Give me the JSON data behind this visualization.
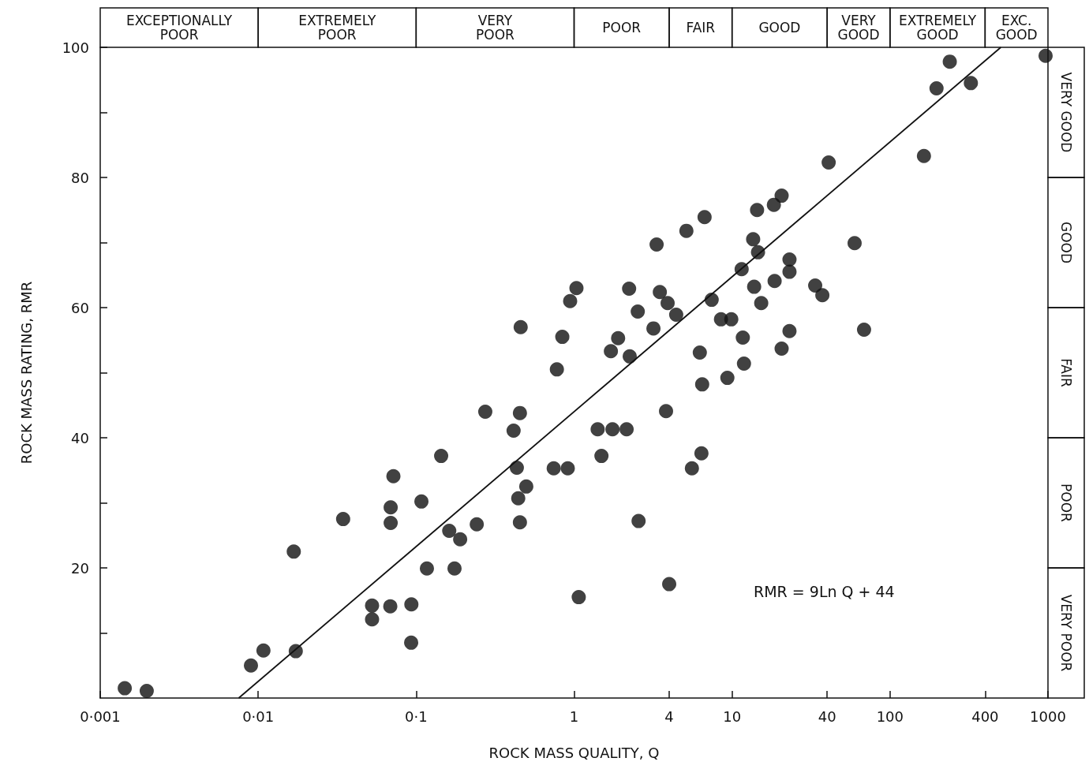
{
  "chart_data": {
    "type": "scatter",
    "xlabel": "ROCK MASS QUALITY, Q",
    "ylabel": "ROCK MASS RATING, RMR",
    "log": "x",
    "marker": "circle",
    "grid": false,
    "xlim": [
      0.001,
      1000
    ],
    "ylim": [
      0,
      100
    ],
    "xticks": [
      {
        "value": 0.001,
        "label": "0·001"
      },
      {
        "value": 0.01,
        "label": "0·01"
      },
      {
        "value": 0.1,
        "label": "0·1"
      },
      1,
      4,
      10,
      40,
      100,
      400,
      1000
    ],
    "yticks": [
      {
        "value": 10,
        "label": null
      },
      20,
      {
        "value": 30,
        "label": null
      },
      40,
      {
        "value": 50,
        "label": null
      },
      60,
      {
        "value": 70,
        "label": null
      },
      80,
      {
        "value": 90,
        "label": null
      },
      100
    ],
    "series": [
      {
        "color": "#111111",
        "x": [
          0.00143,
          0.00197,
          0.009,
          0.0108,
          0.0168,
          0.0173,
          0.0345,
          0.0526,
          0.0526,
          0.0686,
          0.069,
          0.069,
          0.0718,
          0.0933,
          0.093,
          0.108,
          0.117,
          0.144,
          0.162,
          0.175,
          0.19,
          0.242,
          0.274,
          0.414,
          0.434,
          0.443,
          0.454,
          0.459,
          0.454,
          0.498,
          0.743,
          0.778,
          0.842,
          0.912,
          0.944,
          1.035,
          1.07,
          1.41,
          1.49,
          1.71,
          1.75,
          1.9,
          2.15,
          2.23,
          2.25,
          2.53,
          2.56,
          3.18,
          3.33,
          3.49,
          3.82,
          3.91,
          4.0,
          4.43,
          5.14,
          5.57,
          6.25,
          6.4,
          6.47,
          6.7,
          7.43,
          8.51,
          9.34,
          9.89,
          11.5,
          11.7,
          11.9,
          13.6,
          13.8,
          14.4,
          14.6,
          15.3,
          18.4,
          18.6,
          20.6,
          20.6,
          23.1,
          23.1,
          23.1,
          33.6,
          37.3,
          40.9,
          59.7,
          68.5,
          164,
          197,
          239,
          325,
          966
        ],
        "values": [
          1.5,
          1.1,
          5.0,
          7.3,
          22.5,
          7.2,
          27.5,
          14.2,
          12.1,
          14.1,
          29.3,
          26.9,
          34.1,
          14.4,
          8.5,
          30.2,
          19.9,
          37.2,
          25.7,
          19.9,
          24.4,
          26.7,
          44.0,
          41.1,
          35.4,
          30.7,
          43.8,
          57.0,
          27.0,
          32.5,
          35.3,
          50.5,
          55.5,
          35.3,
          61.0,
          63.0,
          15.5,
          41.3,
          37.2,
          53.3,
          41.3,
          55.3,
          41.3,
          62.9,
          52.5,
          59.4,
          27.2,
          56.8,
          69.7,
          62.4,
          44.1,
          60.7,
          17.5,
          58.9,
          71.8,
          35.3,
          53.1,
          37.6,
          48.2,
          73.9,
          61.2,
          58.2,
          49.2,
          58.2,
          65.9,
          55.4,
          51.4,
          70.5,
          63.2,
          75.0,
          68.5,
          60.7,
          75.8,
          64.1,
          77.2,
          53.7,
          67.4,
          56.4,
          65.5,
          63.4,
          61.9,
          82.3,
          69.9,
          56.6,
          83.3,
          93.7,
          97.8,
          94.5,
          98.7
        ]
      },
      {
        "type": "line",
        "color": "#111111",
        "marker": "none",
        "x": [
          0.00753,
          503
        ],
        "values": [
          0,
          100
        ]
      }
    ],
    "annotations": [
      "EXCEPTIONALLY\nPOOR",
      "EXTREMELY\nPOOR",
      "VERY\nPOOR",
      "POOR",
      "FAIR",
      "GOOD",
      "VERY\nGOOD",
      "EXTREMELY\nGOOD",
      "EXC.\nGOOD",
      "VERY POOR",
      "POOR",
      "FAIR",
      "GOOD",
      "VERY GOOD",
      "RMR = 9Ln Q + 44"
    ]
  }
}
